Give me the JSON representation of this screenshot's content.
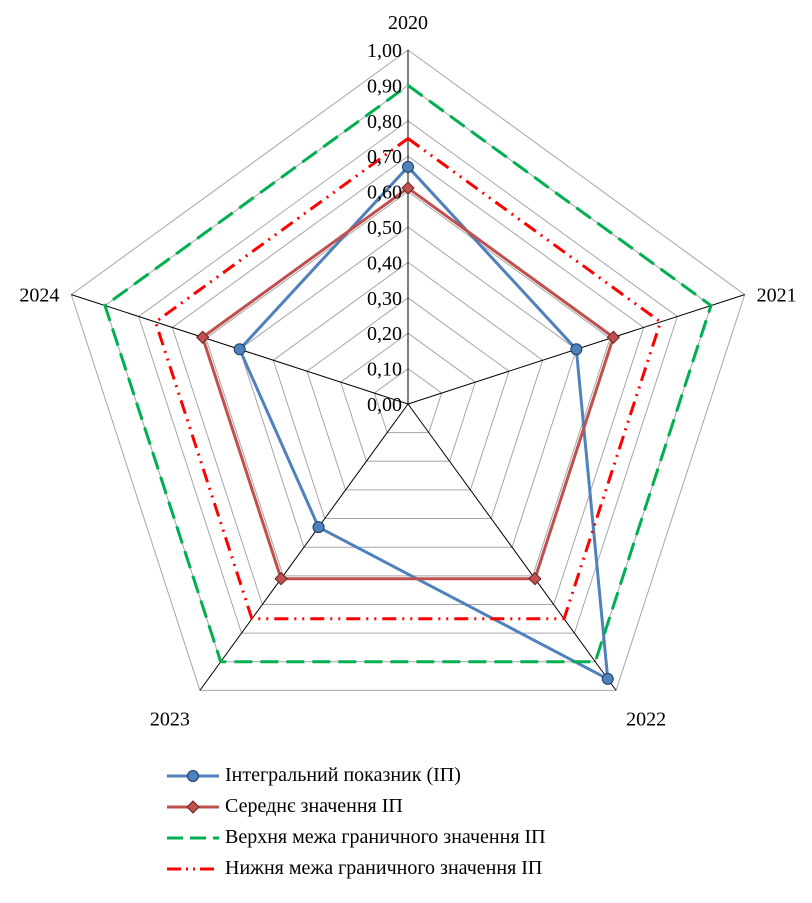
{
  "chart_data": {
    "type": "radar",
    "categories": [
      "2020",
      "2021",
      "2022",
      "2023",
      "2024"
    ],
    "rlim": [
      0,
      1.0
    ],
    "ticks": [
      "0,00",
      "0,10",
      "0,20",
      "0,30",
      "0,40",
      "0,50",
      "0,60",
      "0,70",
      "0,80",
      "0,90",
      "1,00"
    ],
    "grid": true,
    "legend_position": "bottom",
    "series": [
      {
        "name": "Інтегральний показник (ІП)",
        "values": [
          0.67,
          0.5,
          0.96,
          0.43,
          0.5
        ],
        "color": "#4f81bd",
        "marker": "circle",
        "dash": "solid"
      },
      {
        "name": "Середнє значення ІП",
        "values": [
          0.61,
          0.61,
          0.61,
          0.61,
          0.61
        ],
        "color": "#c0504d",
        "marker": "diamond",
        "dash": "solid"
      },
      {
        "name": "Верхня межа граничного значення ІП",
        "values": [
          0.9,
          0.9,
          0.9,
          0.9,
          0.9
        ],
        "color": "#00b050",
        "marker": "none",
        "dash": "long-dash"
      },
      {
        "name": "Нижня межа граничного значення ІП",
        "values": [
          0.75,
          0.75,
          0.75,
          0.75,
          0.75
        ],
        "color": "#ff0000",
        "marker": "none",
        "dash": "dash-dot-dot"
      }
    ]
  }
}
